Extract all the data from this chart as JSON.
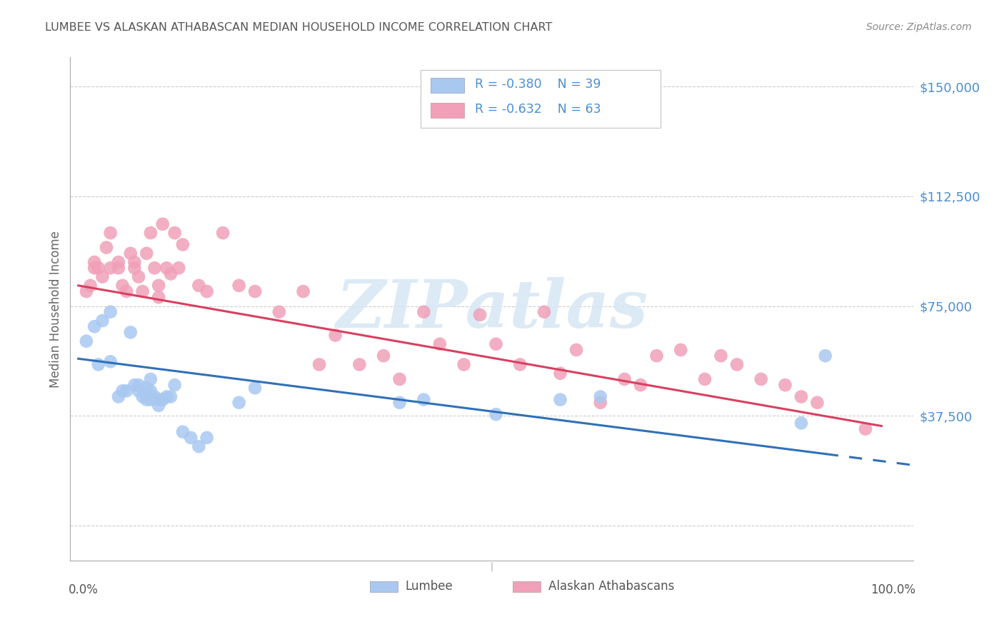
{
  "title": "LUMBEE VS ALASKAN ATHABASCAN MEDIAN HOUSEHOLD INCOME CORRELATION CHART",
  "source": "Source: ZipAtlas.com",
  "ylabel": "Median Household Income",
  "yticks": [
    0,
    37500,
    75000,
    112500,
    150000
  ],
  "ytick_labels": [
    "",
    "$37,500",
    "$75,000",
    "$112,500",
    "$150,000"
  ],
  "ymax": 160000,
  "ymin": -12000,
  "xmin": -0.01,
  "xmax": 1.04,
  "legend_r_lumbee": "R = -0.380",
  "legend_n_lumbee": "N = 39",
  "legend_r_athabascan": "R = -0.632",
  "legend_n_athabascan": "N = 63",
  "lumbee_label": "Lumbee",
  "athabascan_label": "Alaskan Athabascans",
  "blue_color": "#A8C8F0",
  "blue_line_color": "#3070B8",
  "pink_color": "#F0A0B8",
  "pink_line_color": "#D84060",
  "text_color": "#4A8FD4",
  "title_color": "#555555",
  "source_color": "#888888",
  "grid_color": "#CCCCCC",
  "watermark_color": "#D8E8F4",
  "watermark": "ZIPatlas",
  "lumbee_x": [
    0.01,
    0.02,
    0.025,
    0.03,
    0.04,
    0.04,
    0.05,
    0.055,
    0.06,
    0.065,
    0.07,
    0.075,
    0.075,
    0.08,
    0.085,
    0.085,
    0.09,
    0.09,
    0.09,
    0.095,
    0.1,
    0.1,
    0.105,
    0.11,
    0.115,
    0.12,
    0.13,
    0.14,
    0.15,
    0.16,
    0.2,
    0.22,
    0.4,
    0.43,
    0.52,
    0.6,
    0.65,
    0.9,
    0.93
  ],
  "lumbee_y": [
    63000,
    68000,
    55000,
    70000,
    56000,
    73000,
    44000,
    46000,
    46000,
    66000,
    48000,
    46000,
    48000,
    44000,
    43000,
    47000,
    43000,
    46000,
    50000,
    44000,
    41000,
    43000,
    43000,
    44000,
    44000,
    48000,
    32000,
    30000,
    27000,
    30000,
    42000,
    47000,
    42000,
    43000,
    38000,
    43000,
    44000,
    35000,
    58000
  ],
  "athabascan_x": [
    0.01,
    0.015,
    0.02,
    0.02,
    0.025,
    0.03,
    0.035,
    0.04,
    0.04,
    0.05,
    0.05,
    0.055,
    0.06,
    0.065,
    0.07,
    0.07,
    0.075,
    0.08,
    0.085,
    0.09,
    0.095,
    0.1,
    0.1,
    0.105,
    0.11,
    0.115,
    0.12,
    0.125,
    0.13,
    0.15,
    0.16,
    0.18,
    0.2,
    0.22,
    0.25,
    0.28,
    0.3,
    0.32,
    0.35,
    0.38,
    0.4,
    0.43,
    0.45,
    0.48,
    0.5,
    0.52,
    0.55,
    0.58,
    0.6,
    0.62,
    0.65,
    0.68,
    0.7,
    0.72,
    0.75,
    0.78,
    0.8,
    0.82,
    0.85,
    0.88,
    0.9,
    0.92,
    0.98
  ],
  "athabascan_y": [
    80000,
    82000,
    88000,
    90000,
    88000,
    85000,
    95000,
    100000,
    88000,
    90000,
    88000,
    82000,
    80000,
    93000,
    90000,
    88000,
    85000,
    80000,
    93000,
    100000,
    88000,
    82000,
    78000,
    103000,
    88000,
    86000,
    100000,
    88000,
    96000,
    82000,
    80000,
    100000,
    82000,
    80000,
    73000,
    80000,
    55000,
    65000,
    55000,
    58000,
    50000,
    73000,
    62000,
    55000,
    72000,
    62000,
    55000,
    73000,
    52000,
    60000,
    42000,
    50000,
    48000,
    58000,
    60000,
    50000,
    58000,
    55000,
    50000,
    48000,
    44000,
    42000,
    33000
  ],
  "lumbee_slope": -35000,
  "lumbee_intercept": 57000,
  "lumbee_line_xmax": 0.93,
  "lumbee_line_xend": 1.04,
  "athabascan_slope": -48000,
  "athabascan_intercept": 82000
}
